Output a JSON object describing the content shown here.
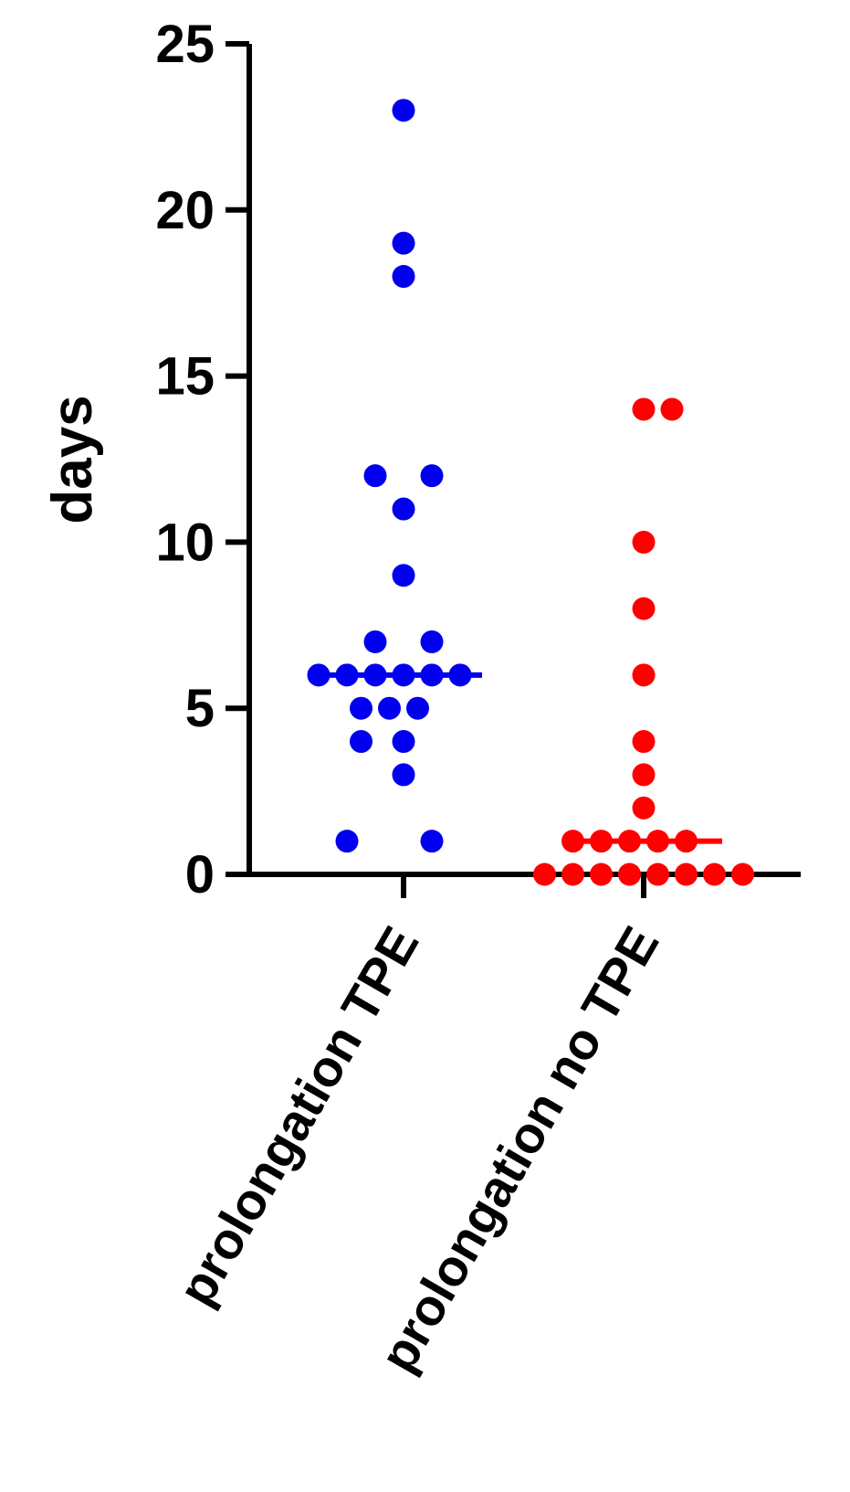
{
  "chart_data": {
    "type": "scatter",
    "title": "",
    "xlabel": "",
    "ylabel": "days",
    "ylim": [
      0,
      25
    ],
    "yticks": [
      0,
      5,
      10,
      15,
      20,
      25
    ],
    "grid": false,
    "legend": "none",
    "categories": [
      "prolongation TPE",
      "prolongation no TPE"
    ],
    "series": [
      {
        "color": "#0000ee",
        "median": 6,
        "points": [
          {
            "y": 23,
            "offset": 0
          },
          {
            "y": 19,
            "offset": 0
          },
          {
            "y": 18,
            "offset": 0
          },
          {
            "y": 12,
            "offset": -1
          },
          {
            "y": 12,
            "offset": 1
          },
          {
            "y": 11,
            "offset": 0
          },
          {
            "y": 9,
            "offset": 0
          },
          {
            "y": 7,
            "offset": -1
          },
          {
            "y": 7,
            "offset": 1
          },
          {
            "y": 6,
            "offset": -3
          },
          {
            "y": 6,
            "offset": -2
          },
          {
            "y": 6,
            "offset": -1
          },
          {
            "y": 6,
            "offset": 0
          },
          {
            "y": 6,
            "offset": 1
          },
          {
            "y": 6,
            "offset": 2
          },
          {
            "y": 5,
            "offset": -1.5
          },
          {
            "y": 5,
            "offset": -0.5
          },
          {
            "y": 5,
            "offset": 0.5
          },
          {
            "y": 4,
            "offset": -1.5
          },
          {
            "y": 4,
            "offset": 0
          },
          {
            "y": 3,
            "offset": 0
          },
          {
            "y": 1,
            "offset": -2
          },
          {
            "y": 1,
            "offset": 1
          }
        ]
      },
      {
        "color": "#ff0000",
        "median": 1,
        "points": [
          {
            "y": 14,
            "offset": 0
          },
          {
            "y": 14,
            "offset": 1
          },
          {
            "y": 10,
            "offset": 0
          },
          {
            "y": 8,
            "offset": 0
          },
          {
            "y": 6,
            "offset": 0
          },
          {
            "y": 4,
            "offset": 0
          },
          {
            "y": 3,
            "offset": 0
          },
          {
            "y": 2,
            "offset": 0
          },
          {
            "y": 1,
            "offset": -2.5
          },
          {
            "y": 1,
            "offset": -1.5
          },
          {
            "y": 1,
            "offset": -0.5
          },
          {
            "y": 1,
            "offset": 0.5
          },
          {
            "y": 1,
            "offset": 1.5
          },
          {
            "y": 0,
            "offset": -3.5
          },
          {
            "y": 0,
            "offset": -2.5
          },
          {
            "y": 0,
            "offset": -1.5
          },
          {
            "y": 0,
            "offset": -0.5
          },
          {
            "y": 0,
            "offset": 0.5
          },
          {
            "y": 0,
            "offset": 1.5
          },
          {
            "y": 0,
            "offset": 2.5
          },
          {
            "y": 0,
            "offset": 3.5
          }
        ]
      }
    ]
  }
}
